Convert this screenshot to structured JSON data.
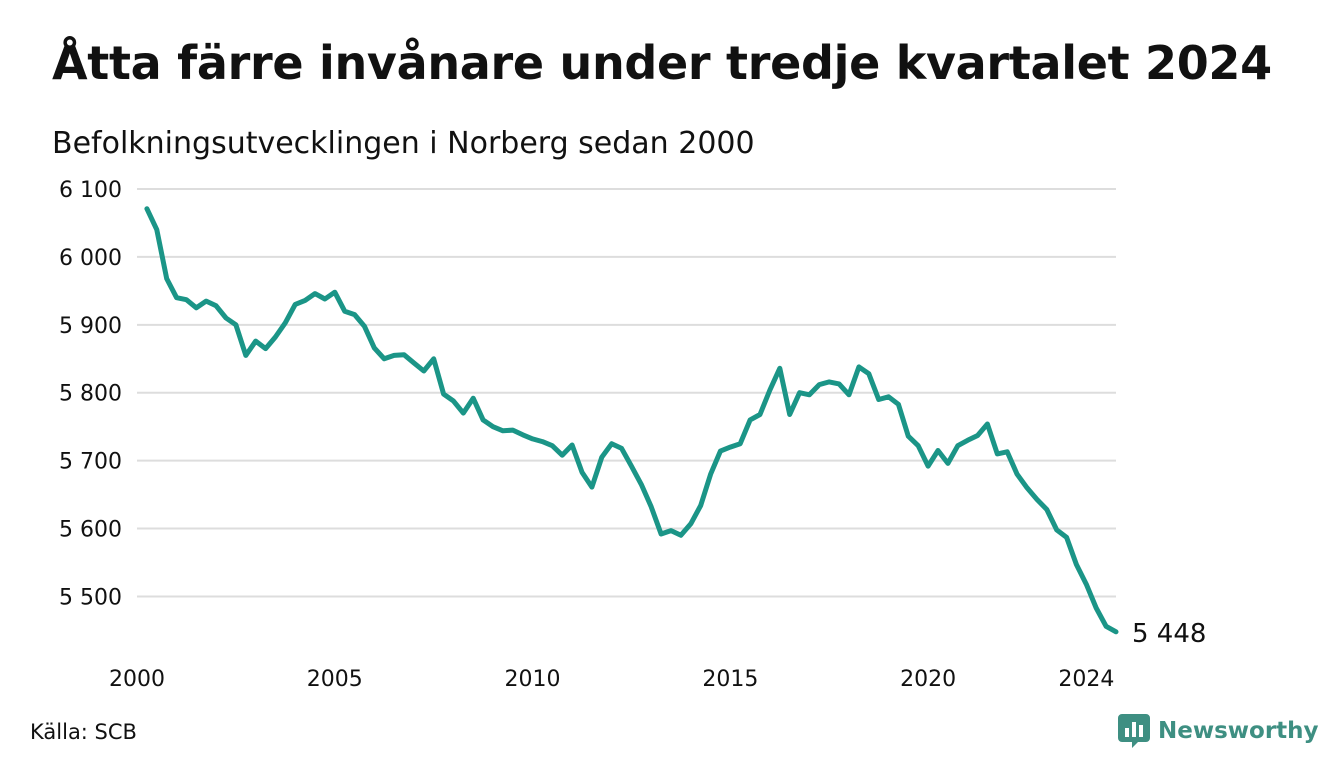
{
  "title": "Åtta färre invånare under tredje kvartalet 2024",
  "subtitle": "Befolkningsutvecklingen i Norberg sedan 2000",
  "source": "Källa: SCB",
  "brand": {
    "name": "Newsworthy",
    "icon": "newsworthy-logo-icon",
    "color": "#3e8f82"
  },
  "colors": {
    "line": "#1b9587",
    "grid": "#dddddd",
    "text": "#111111"
  },
  "chart_data": {
    "type": "line",
    "title": "Åtta färre invånare under tredje kvartalet 2024",
    "subtitle": "Befolkningsutvecklingen i Norberg sedan 2000",
    "xlabel": "",
    "ylabel": "",
    "xlim": [
      2000,
      2024.75
    ],
    "ylim": [
      5430,
      6100
    ],
    "grid": true,
    "y_ticks": [
      {
        "value": 6100,
        "label": "6 100"
      },
      {
        "value": 6000,
        "label": "6 000"
      },
      {
        "value": 5900,
        "label": "5 900"
      },
      {
        "value": 5800,
        "label": "5 800"
      },
      {
        "value": 5700,
        "label": "5 700"
      },
      {
        "value": 5600,
        "label": "5 600"
      },
      {
        "value": 5500,
        "label": "5 500"
      }
    ],
    "x_ticks": [
      {
        "value": 2000,
        "label": "2000"
      },
      {
        "value": 2005,
        "label": "2005"
      },
      {
        "value": 2010,
        "label": "2010"
      },
      {
        "value": 2015,
        "label": "2015"
      },
      {
        "value": 2020,
        "label": "2020"
      },
      {
        "value": 2024,
        "label": "2024"
      }
    ],
    "end_label": "5 448",
    "series": [
      {
        "x": [
          2000.25,
          2000.5,
          2000.75,
          2001.0,
          2001.25,
          2001.5,
          2001.75,
          2002.0,
          2002.25,
          2002.5,
          2002.75,
          2003.0,
          2003.25,
          2003.5,
          2003.75,
          2004.0,
          2004.25,
          2004.5,
          2004.75,
          2005.0,
          2005.25,
          2005.5,
          2005.75,
          2006.0,
          2006.25,
          2006.5,
          2006.75,
          2007.0,
          2007.25,
          2007.5,
          2007.75,
          2008.0,
          2008.25,
          2008.5,
          2008.75,
          2009.0,
          2009.25,
          2009.5,
          2009.75,
          2010.0,
          2010.25,
          2010.5,
          2010.75,
          2011.0,
          2011.25,
          2011.5,
          2011.75,
          2012.0,
          2012.25,
          2012.5,
          2012.75,
          2013.0,
          2013.25,
          2013.5,
          2013.75,
          2014.0,
          2014.25,
          2014.5,
          2014.75,
          2015.0,
          2015.25,
          2015.5,
          2015.75,
          2016.0,
          2016.25,
          2016.5,
          2016.75,
          2017.0,
          2017.25,
          2017.5,
          2017.75,
          2018.0,
          2018.25,
          2018.5,
          2018.75,
          2019.0,
          2019.25,
          2019.5,
          2019.75,
          2020.0,
          2020.25,
          2020.5,
          2020.75,
          2021.0,
          2021.25,
          2021.5,
          2021.75,
          2022.0,
          2022.25,
          2022.5,
          2022.75,
          2023.0,
          2023.25,
          2023.5,
          2023.75,
          2024.0,
          2024.25,
          2024.5,
          2024.75
        ],
        "values": [
          6071,
          6040,
          5968,
          5940,
          5937,
          5925,
          5935,
          5928,
          5910,
          5900,
          5855,
          5876,
          5865,
          5882,
          5903,
          5930,
          5936,
          5946,
          5938,
          5948,
          5920,
          5915,
          5898,
          5866,
          5850,
          5855,
          5856,
          5844,
          5832,
          5850,
          5798,
          5788,
          5770,
          5792,
          5760,
          5750,
          5744,
          5745,
          5738,
          5732,
          5728,
          5722,
          5708,
          5723,
          5683,
          5661,
          5705,
          5725,
          5718,
          5692,
          5665,
          5632,
          5592,
          5597,
          5590,
          5607,
          5634,
          5680,
          5714,
          5720,
          5725,
          5760,
          5768,
          5804,
          5836,
          5768,
          5800,
          5797,
          5812,
          5816,
          5813,
          5797,
          5838,
          5828,
          5790,
          5794,
          5783,
          5736,
          5722,
          5692,
          5715,
          5696,
          5722,
          5730,
          5737,
          5754,
          5710,
          5713,
          5680,
          5660,
          5643,
          5628,
          5598,
          5587,
          5547,
          5518,
          5483,
          5456,
          5448
        ]
      }
    ]
  }
}
